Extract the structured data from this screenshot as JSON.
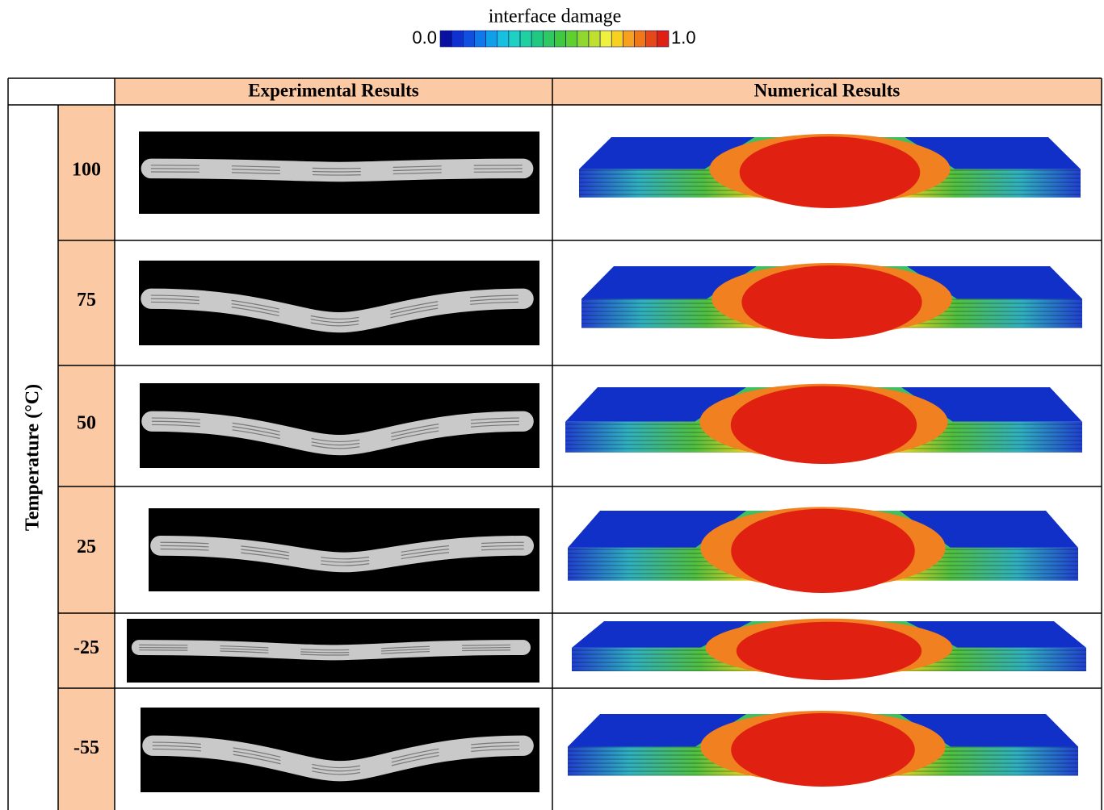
{
  "colorbar": {
    "title": "interface damage",
    "min_label": "0.0",
    "max_label": "1.0"
  },
  "table": {
    "headers": [
      "Experimental Results",
      "Numerical Results"
    ],
    "row_group_label": "Temperature (°C)",
    "rows": [
      "100",
      "75",
      "50",
      "25",
      "-25",
      "-55"
    ]
  }
}
